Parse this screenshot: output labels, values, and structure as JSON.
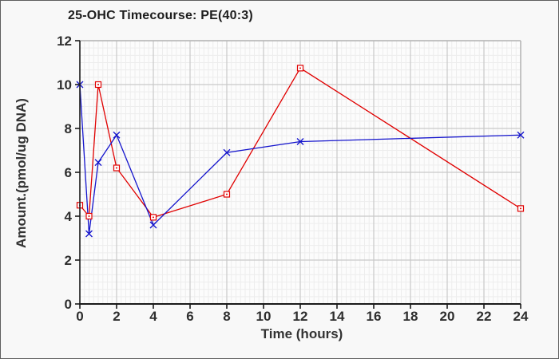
{
  "window": {
    "background": "#f8f8f8",
    "border_color": "#5f5f5f"
  },
  "chart_data": {
    "type": "line",
    "title": "25-OHC Timecourse: PE(40:3)",
    "xlabel": "Time (hours)",
    "ylabel": "Amount.(pmol/ug DNA)",
    "xlim": [
      0,
      24
    ],
    "ylim": [
      0,
      12
    ],
    "x_ticks": [
      0,
      2,
      4,
      6,
      8,
      10,
      12,
      14,
      16,
      18,
      20,
      22,
      24
    ],
    "y_ticks": [
      0,
      2,
      4,
      6,
      8,
      10,
      12
    ],
    "grid": {
      "major": true,
      "minor": true,
      "major_color": "#c9c9c9",
      "minor_color": "#ededed",
      "minor_x_step": 0.25,
      "minor_y_step": 0.3333
    },
    "legend": "none",
    "x": [
      0,
      0.5,
      1,
      2,
      4,
      8,
      12,
      24
    ],
    "series": [
      {
        "name": "red-squares",
        "color": "#e00000",
        "marker": "open-square",
        "values": [
          4.5,
          4.0,
          10.0,
          6.2,
          3.95,
          5.0,
          10.75,
          4.35
        ]
      },
      {
        "name": "blue-x",
        "color": "#1414cc",
        "marker": "x",
        "values": [
          10.0,
          3.2,
          6.45,
          7.7,
          3.6,
          6.9,
          7.4,
          7.7
        ]
      }
    ],
    "styles": {
      "plot_background": "#fcfcfc",
      "frame_color": "#b5b5b5",
      "axis_color": "#1a1a1a",
      "tick_label_color": "#2e2e2e",
      "tick_font_size": 17
    }
  }
}
